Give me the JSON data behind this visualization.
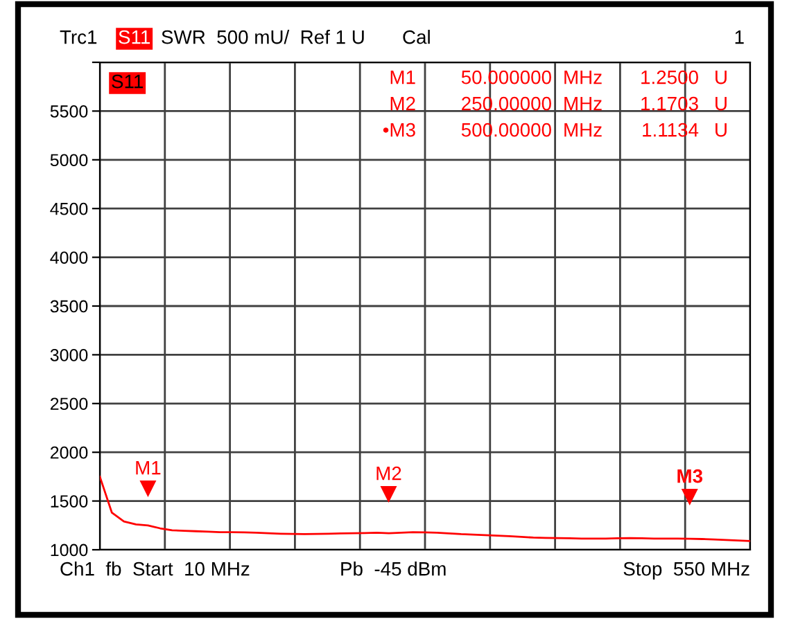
{
  "chart_data": {
    "type": "line",
    "categories": [
      null,
      null,
      null,
      null,
      null,
      null,
      null,
      null,
      null,
      null,
      null,
      null,
      null,
      null,
      null,
      null,
      null,
      null,
      null,
      null,
      null,
      null,
      null,
      null,
      null,
      null,
      null,
      null,
      null,
      null,
      null,
      null,
      null,
      null,
      null,
      null,
      null,
      null,
      null,
      null,
      null,
      null,
      null,
      null,
      null,
      null,
      null,
      null,
      null,
      null,
      null,
      null,
      null,
      null,
      null
    ],
    "series": [
      {
        "color": "#ff0000",
        "values": [
          1750,
          1380,
          1290,
          1260,
          1250,
          1220,
          1200,
          1195,
          1190,
          1185,
          1180,
          1180,
          1178,
          1175,
          1170,
          1165,
          1162,
          1160,
          1162,
          1165,
          1168,
          1170,
          1172,
          1175,
          1170,
          1175,
          1180,
          1178,
          1175,
          1168,
          1160,
          1155,
          1150,
          1145,
          1140,
          1132,
          1125,
          1122,
          1120,
          1118,
          1115,
          1115,
          1115,
          1118,
          1120,
          1118,
          1115,
          1115,
          1115,
          1113,
          1110,
          1105,
          1100,
          1095,
          1090
        ]
      }
    ],
    "ylim": [
      1000,
      6000
    ],
    "yticks": [
      1000,
      1500,
      2000,
      2500,
      3000,
      3500,
      4000,
      4500,
      5000,
      5500,
      {
        "value": 6000,
        "label": null
      }
    ],
    "grid": true,
    "tick_labels": "y",
    "annotations": [
      "Trc1",
      "S11",
      "SWR  500 mU/  Ref 1 U",
      "Cal",
      "1",
      "S11",
      "M1",
      "50.000000",
      "MHz",
      "1.2500",
      "U",
      "M2",
      "250.00000",
      "MHz",
      "1.1703",
      "U",
      "•M3",
      "500.00000",
      "MHz",
      "1.1134",
      "U",
      "Ch1  fb  Start  10 MHz",
      "Pb  -45 dBm",
      "Stop  550 MHz",
      "M1",
      "M2",
      "M3"
    ]
  }
}
